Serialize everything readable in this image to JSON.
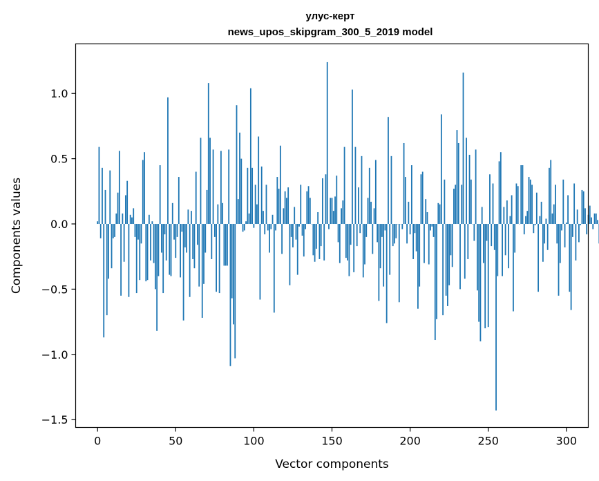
{
  "chart_data": {
    "type": "bar",
    "title": "улус-керт",
    "subtitle": "news_upos_skipgram_300_5_2019 model",
    "xlabel": "Vector components",
    "ylabel": "Components values",
    "xlim": [
      -14,
      314
    ],
    "ylim": [
      -1.56,
      1.38
    ],
    "xticks": [
      0,
      50,
      100,
      150,
      200,
      250,
      300
    ],
    "xtick_labels": [
      "0",
      "50",
      "100",
      "150",
      "200",
      "250",
      "300"
    ],
    "yticks": [
      -1.5,
      -1.0,
      -0.5,
      0.0,
      0.5,
      1.0
    ],
    "ytick_labels": [
      "−1.5",
      "−1.0",
      "−0.5",
      "0.0",
      "0.5",
      "1.0"
    ],
    "grid": false,
    "color": "#1f77b4",
    "x_start": 0,
    "values": [
      0.02,
      0.59,
      -0.11,
      0.43,
      -0.87,
      0.26,
      -0.7,
      -0.42,
      0.41,
      -0.34,
      -0.11,
      -0.1,
      0.08,
      0.24,
      0.56,
      -0.55,
      0.08,
      -0.29,
      0.22,
      0.33,
      -0.56,
      0.07,
      0.05,
      0.12,
      -0.1,
      -0.53,
      -0.12,
      -0.43,
      -0.15,
      0.49,
      0.55,
      -0.44,
      -0.43,
      0.07,
      -0.28,
      0.02,
      -0.3,
      -0.5,
      -0.82,
      -0.4,
      0.45,
      -0.22,
      -0.53,
      -0.08,
      -0.28,
      0.97,
      -0.39,
      -0.4,
      0.16,
      -0.12,
      -0.26,
      -0.1,
      0.36,
      -0.41,
      -0.06,
      -0.74,
      -0.18,
      -0.22,
      0.11,
      -0.56,
      0.1,
      -0.27,
      -0.34,
      0.4,
      -0.16,
      -0.48,
      0.66,
      -0.72,
      -0.46,
      -0.22,
      0.26,
      1.08,
      0.66,
      -0.27,
      0.57,
      -0.1,
      -0.52,
      0.15,
      -0.53,
      0.56,
      0.16,
      -0.32,
      -0.32,
      -0.32,
      0.57,
      -1.09,
      -0.57,
      -0.77,
      -1.03,
      0.91,
      0.19,
      0.7,
      0.5,
      -0.06,
      -0.05,
      0.02,
      0.43,
      0.08,
      1.04,
      0.43,
      -0.03,
      0.3,
      0.15,
      0.67,
      -0.58,
      0.44,
      0.1,
      -0.08,
      0.3,
      -0.05,
      -0.22,
      -0.04,
      0.07,
      -0.68,
      -0.05,
      0.36,
      0.27,
      0.6,
      -0.23,
      0.12,
      0.25,
      0.2,
      0.28,
      -0.47,
      -0.1,
      -0.18,
      0.13,
      -0.12,
      -0.39,
      -0.02,
      0.3,
      -0.09,
      -0.25,
      -0.04,
      0.25,
      0.29,
      0.2,
      0.0,
      -0.24,
      -0.29,
      -0.19,
      0.09,
      -0.27,
      -0.17,
      0.35,
      -0.28,
      0.38,
      1.24,
      -0.04,
      0.2,
      0.2,
      0.1,
      0.21,
      0.37,
      -0.14,
      -0.3,
      0.12,
      0.18,
      0.59,
      -0.26,
      -0.28,
      -0.4,
      -0.16,
      1.03,
      -0.37,
      0.59,
      -0.17,
      0.28,
      -0.07,
      0.52,
      -0.41,
      -0.31,
      -0.1,
      0.2,
      0.43,
      0.17,
      -0.23,
      0.12,
      0.49,
      -0.14,
      -0.59,
      -0.34,
      -0.1,
      -0.48,
      -0.05,
      -0.76,
      0.82,
      -0.39,
      0.52,
      -0.17,
      -0.15,
      -0.11,
      0.0,
      -0.6,
      0.0,
      -0.04,
      0.62,
      0.36,
      -0.15,
      0.17,
      -0.08,
      0.45,
      -0.27,
      -0.07,
      -0.21,
      -0.65,
      -0.48,
      0.38,
      0.4,
      -0.3,
      0.19,
      0.09,
      -0.31,
      -0.05,
      -0.02,
      -0.1,
      -0.89,
      -0.73,
      0.16,
      0.15,
      0.84,
      -0.7,
      0.34,
      -0.55,
      -0.63,
      -0.47,
      -0.24,
      -0.33,
      0.27,
      0.3,
      0.72,
      0.62,
      -0.5,
      0.3,
      1.16,
      -0.42,
      0.66,
      -0.27,
      0.53,
      0.34,
      0.0,
      -0.13,
      0.57,
      -0.51,
      -0.75,
      -0.9,
      0.13,
      -0.3,
      -0.8,
      -0.13,
      -0.79,
      0.38,
      -0.17,
      0.31,
      -0.2,
      -1.43,
      -0.4,
      0.48,
      0.55,
      -0.4,
      0.13,
      -0.24,
      0.18,
      -0.34,
      0.06,
      0.22,
      -0.67,
      -0.22,
      0.31,
      0.29,
      0.0,
      0.45,
      0.45,
      -0.08,
      0.06,
      0.1,
      0.36,
      0.34,
      0.3,
      -0.07,
      -0.01,
      0.24,
      -0.52,
      0.06,
      0.17,
      -0.29,
      -0.15,
      0.04,
      -0.2,
      0.43,
      0.49,
      0.08,
      0.15,
      0.3,
      -0.15,
      -0.55,
      -0.3,
      -0.05,
      0.34,
      -0.18,
      0.01,
      0.22,
      -0.52,
      -0.66,
      -0.1,
      0.31,
      -0.28,
      0.11,
      -0.14,
      -0.01,
      0.26,
      0.25,
      0.12,
      -0.08,
      0.07,
      0.14,
      0.05,
      -0.04,
      0.08,
      0.08,
      0.03,
      -0.15
    ]
  }
}
